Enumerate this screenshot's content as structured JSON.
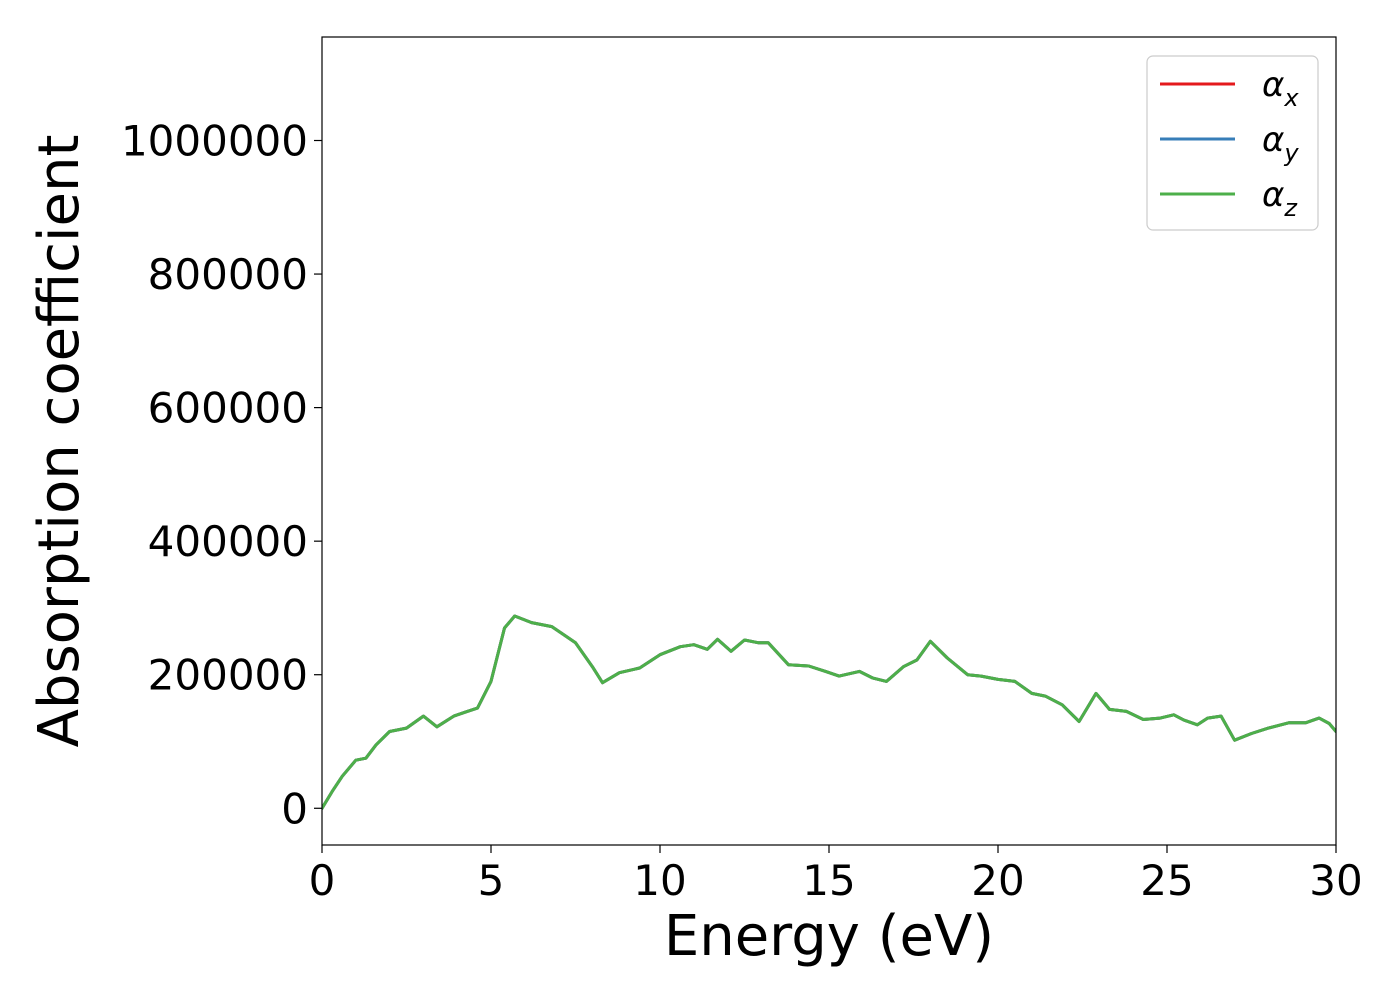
{
  "chart_data": {
    "type": "line",
    "xlabel": "Energy (eV)",
    "ylabel": "Absorption coefficient",
    "xlim": [
      0,
      30
    ],
    "ylim": [
      -55000,
      1155000
    ],
    "xticks": [
      0,
      5,
      10,
      15,
      20,
      25,
      30
    ],
    "xtick_labels": [
      "0",
      "5",
      "10",
      "15",
      "20",
      "25",
      "30"
    ],
    "yticks": [
      0,
      200000,
      400000,
      600000,
      800000,
      1000000
    ],
    "ytick_labels": [
      "0",
      "200000",
      "400000",
      "600000",
      "800000",
      "1000000"
    ],
    "grid": false,
    "legend_position": "top-right",
    "series": [
      {
        "name": "α",
        "subscript": "x",
        "color": "#e41a1c",
        "x": [
          0,
          0.3,
          0.6,
          1.0,
          1.3,
          1.6,
          2.0,
          2.5,
          3.0,
          3.4,
          3.9,
          4.3,
          4.6,
          5.0,
          5.4,
          5.7,
          6.2,
          6.8,
          7.5,
          8.0,
          8.3,
          8.8,
          9.4,
          10.0,
          10.6,
          11.0,
          11.4,
          11.7,
          12.1,
          12.5,
          12.9,
          13.2,
          13.8,
          14.4,
          14.9,
          15.3,
          15.9,
          16.3,
          16.7,
          17.2,
          17.6,
          18.0,
          18.5,
          19.1,
          19.5,
          20.0,
          20.5,
          21.0,
          21.4,
          21.9,
          22.4,
          22.9,
          23.3,
          23.8,
          24.3,
          24.8,
          25.2,
          25.5,
          25.9,
          26.2,
          26.6,
          27.0,
          27.5,
          28.0,
          28.6,
          29.1,
          29.5,
          29.8,
          30.0
        ],
        "values": [
          0,
          25000,
          48000,
          72000,
          75000,
          95000,
          115000,
          120000,
          138000,
          122000,
          138000,
          145000,
          150000,
          190000,
          270000,
          288000,
          278000,
          272000,
          248000,
          212000,
          188000,
          203000,
          210000,
          230000,
          242000,
          245000,
          238000,
          253000,
          235000,
          252000,
          248000,
          248000,
          215000,
          213000,
          205000,
          198000,
          205000,
          195000,
          190000,
          212000,
          222000,
          250000,
          225000,
          200000,
          198000,
          193000,
          190000,
          172000,
          168000,
          155000,
          130000,
          172000,
          148000,
          145000,
          133000,
          135000,
          140000,
          132000,
          125000,
          135000,
          138000,
          102000,
          112000,
          120000,
          128000,
          128000,
          135000,
          127000,
          115000
        ]
      },
      {
        "name": "α",
        "subscript": "y",
        "color": "#377eb8",
        "x": [
          0,
          0.3,
          0.6,
          1.0,
          1.3,
          1.6,
          2.0,
          2.5,
          3.0,
          3.4,
          3.9,
          4.3,
          4.6,
          5.0,
          5.4,
          5.7,
          6.2,
          6.8,
          7.5,
          8.0,
          8.3,
          8.8,
          9.4,
          10.0,
          10.6,
          11.0,
          11.4,
          11.7,
          12.1,
          12.5,
          12.9,
          13.2,
          13.8,
          14.4,
          14.9,
          15.3,
          15.9,
          16.3,
          16.7,
          17.2,
          17.6,
          18.0,
          18.5,
          19.1,
          19.5,
          20.0,
          20.5,
          21.0,
          21.4,
          21.9,
          22.4,
          22.9,
          23.3,
          23.8,
          24.3,
          24.8,
          25.2,
          25.5,
          25.9,
          26.2,
          26.6,
          27.0,
          27.5,
          28.0,
          28.6,
          29.1,
          29.5,
          29.8,
          30.0
        ],
        "values": [
          0,
          25000,
          48000,
          72000,
          75000,
          95000,
          115000,
          120000,
          138000,
          122000,
          138000,
          145000,
          150000,
          190000,
          270000,
          288000,
          278000,
          272000,
          248000,
          212000,
          188000,
          203000,
          210000,
          230000,
          242000,
          245000,
          238000,
          253000,
          235000,
          252000,
          248000,
          248000,
          215000,
          213000,
          205000,
          198000,
          205000,
          195000,
          190000,
          212000,
          222000,
          250000,
          225000,
          200000,
          198000,
          193000,
          190000,
          172000,
          168000,
          155000,
          130000,
          172000,
          148000,
          145000,
          133000,
          135000,
          140000,
          132000,
          125000,
          135000,
          138000,
          102000,
          112000,
          120000,
          128000,
          128000,
          135000,
          127000,
          115000
        ]
      },
      {
        "name": "α",
        "subscript": "z",
        "color": "#4daf4a",
        "x": [
          0,
          0.3,
          0.6,
          1.0,
          1.3,
          1.6,
          2.0,
          2.5,
          3.0,
          3.4,
          3.9,
          4.3,
          4.6,
          5.0,
          5.4,
          5.7,
          6.2,
          6.8,
          7.5,
          8.0,
          8.3,
          8.8,
          9.4,
          10.0,
          10.6,
          11.0,
          11.4,
          11.7,
          12.1,
          12.5,
          12.9,
          13.2,
          13.8,
          14.4,
          14.9,
          15.3,
          15.9,
          16.3,
          16.7,
          17.2,
          17.6,
          18.0,
          18.5,
          19.1,
          19.5,
          20.0,
          20.5,
          21.0,
          21.4,
          21.9,
          22.4,
          22.9,
          23.3,
          23.8,
          24.3,
          24.8,
          25.2,
          25.5,
          25.9,
          26.2,
          26.6,
          27.0,
          27.5,
          28.0,
          28.6,
          29.1,
          29.5,
          29.8,
          30.0
        ],
        "values": [
          0,
          25000,
          48000,
          72000,
          75000,
          95000,
          115000,
          120000,
          138000,
          122000,
          138000,
          145000,
          150000,
          190000,
          270000,
          288000,
          278000,
          272000,
          248000,
          212000,
          188000,
          203000,
          210000,
          230000,
          242000,
          245000,
          238000,
          253000,
          235000,
          252000,
          248000,
          248000,
          215000,
          213000,
          205000,
          198000,
          205000,
          195000,
          190000,
          212000,
          222000,
          250000,
          225000,
          200000,
          198000,
          193000,
          190000,
          172000,
          168000,
          155000,
          130000,
          172000,
          148000,
          145000,
          133000,
          135000,
          140000,
          132000,
          125000,
          135000,
          138000,
          102000,
          112000,
          120000,
          128000,
          128000,
          135000,
          127000,
          115000
        ]
      }
    ]
  }
}
